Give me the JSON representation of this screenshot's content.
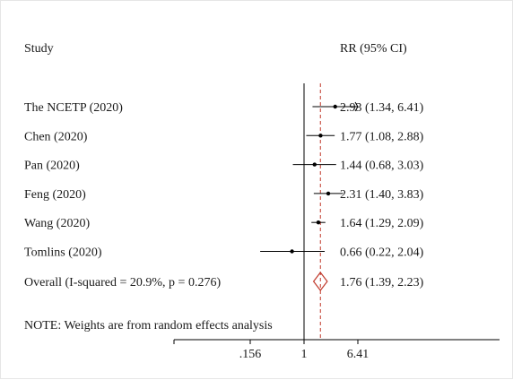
{
  "chart_data": {
    "type": "forest",
    "header": {
      "study": "Study",
      "effect": "RR (95% CI)"
    },
    "x_scale": "log",
    "x_ticks": [
      {
        "value": 0.156,
        "label": ".156"
      },
      {
        "value": 1,
        "label": "1"
      },
      {
        "value": 6.41,
        "label": "6.41"
      }
    ],
    "xlim": [
      0.156,
      6.41
    ],
    "reference_line": 1,
    "overall_line": 1.76,
    "studies": [
      {
        "name": "The NCETP (2020)",
        "rr": 2.93,
        "lo": 1.34,
        "hi": 6.41,
        "text": "2.93 (1.34, 6.41)"
      },
      {
        "name": "Chen (2020)",
        "rr": 1.77,
        "lo": 1.08,
        "hi": 2.88,
        "text": "1.77 (1.08, 2.88)"
      },
      {
        "name": "Pan (2020)",
        "rr": 1.44,
        "lo": 0.68,
        "hi": 3.03,
        "text": "1.44 (0.68, 3.03)"
      },
      {
        "name": "Feng (2020)",
        "rr": 2.31,
        "lo": 1.4,
        "hi": 3.83,
        "text": "2.31 (1.40, 3.83)"
      },
      {
        "name": "Wang (2020)",
        "rr": 1.64,
        "lo": 1.29,
        "hi": 2.09,
        "text": "1.64 (1.29, 2.09)"
      },
      {
        "name": "Tomlins (2020)",
        "rr": 0.66,
        "lo": 0.22,
        "hi": 2.04,
        "text": "0.66 (0.22, 2.04)"
      }
    ],
    "overall": {
      "name": "Overall  (I-squared = 20.9%, p = 0.276)",
      "rr": 1.76,
      "lo": 1.39,
      "hi": 2.23,
      "text": "1.76 (1.39, 2.23)"
    },
    "note": "NOTE: Weights are from random effects analysis",
    "colors": {
      "text": "#1a1a1a",
      "axis": "#000000",
      "overall_line": "#c0392b",
      "diamond": "#c0392b",
      "ci": "#000000"
    }
  }
}
